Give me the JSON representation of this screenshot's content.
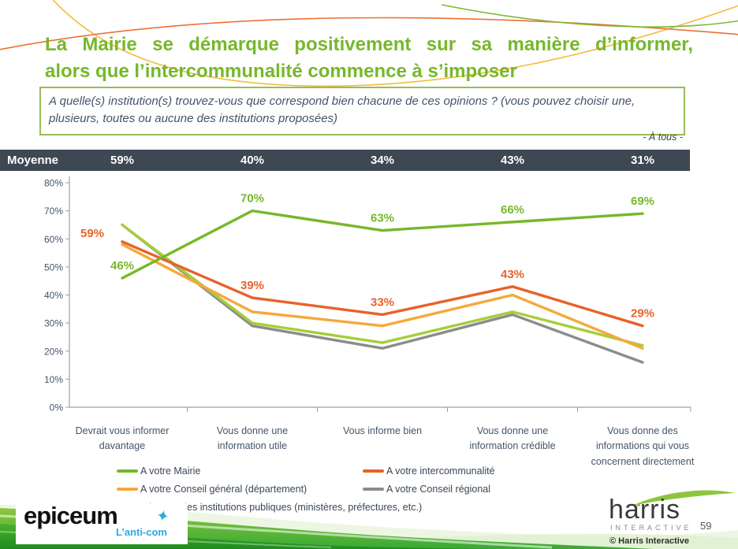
{
  "slide": {
    "title_line1": "La Mairie se démarque positivement sur sa manière d’informer,",
    "title_line2": "alors que l’intercommunalité commence à s’imposer",
    "question": "A quelle(s) institution(s) trouvez-vous que correspond bien chacune de ces opinions ? (vous pouvez choisir une, plusieurs, toutes ou aucune des institutions proposées)",
    "audience_note": "- À tous -",
    "page_number": "59",
    "copyright": "© Harris Interactive"
  },
  "moyenne": {
    "label": "Moyenne",
    "values": [
      "59%",
      "40%",
      "34%",
      "43%",
      "31%"
    ]
  },
  "chart_data": {
    "type": "line",
    "categories": [
      "Devrait vous informer davantage",
      "Vous donne une information utile",
      "Vous informe bien",
      "Vous donne une information crédible",
      "Vous donne des informations qui vous concernent directement"
    ],
    "series": [
      {
        "name": "A votre Mairie",
        "color": "#76B82A",
        "values": [
          46,
          70,
          63,
          66,
          69
        ],
        "labeled": true
      },
      {
        "name": "A votre intercommunalité",
        "color": "#E8622A",
        "values": [
          59,
          39,
          33,
          43,
          29
        ],
        "labeled": true
      },
      {
        "name": "A votre Conseil général (département)",
        "color": "#F5A93B",
        "values": [
          58,
          34,
          29,
          40,
          21
        ],
        "labeled": false
      },
      {
        "name": "A votre Conseil régional",
        "color": "#8C8C8C",
        "values": [
          65,
          29,
          21,
          33,
          16
        ],
        "labeled": false
      },
      {
        "name": "A l’Etat et les institutions publiques (ministères, préfectures, etc.)",
        "color": "#A6CE39",
        "values": [
          65,
          30,
          23,
          34,
          22
        ],
        "labeled": false
      }
    ],
    "ylim": [
      0,
      80
    ],
    "ytick_step": 10,
    "ytick_suffix": "%",
    "grid": false,
    "legend_position": "bottom-two-columns"
  },
  "logos": {
    "epiceum": {
      "name": "epiceum",
      "tagline": "L’anti-com",
      "accent_color": "#29ABE2"
    },
    "harris": {
      "name": "harris",
      "sub": "INTERACTIVE"
    }
  },
  "colors": {
    "title_green": "#76B82A",
    "moyenne_bar": "#3D4853",
    "question_border": "#9BBB59",
    "axis_text": "#44546A",
    "footer_green_dark": "#1E8C1E",
    "footer_green_light": "#8DC63F"
  }
}
